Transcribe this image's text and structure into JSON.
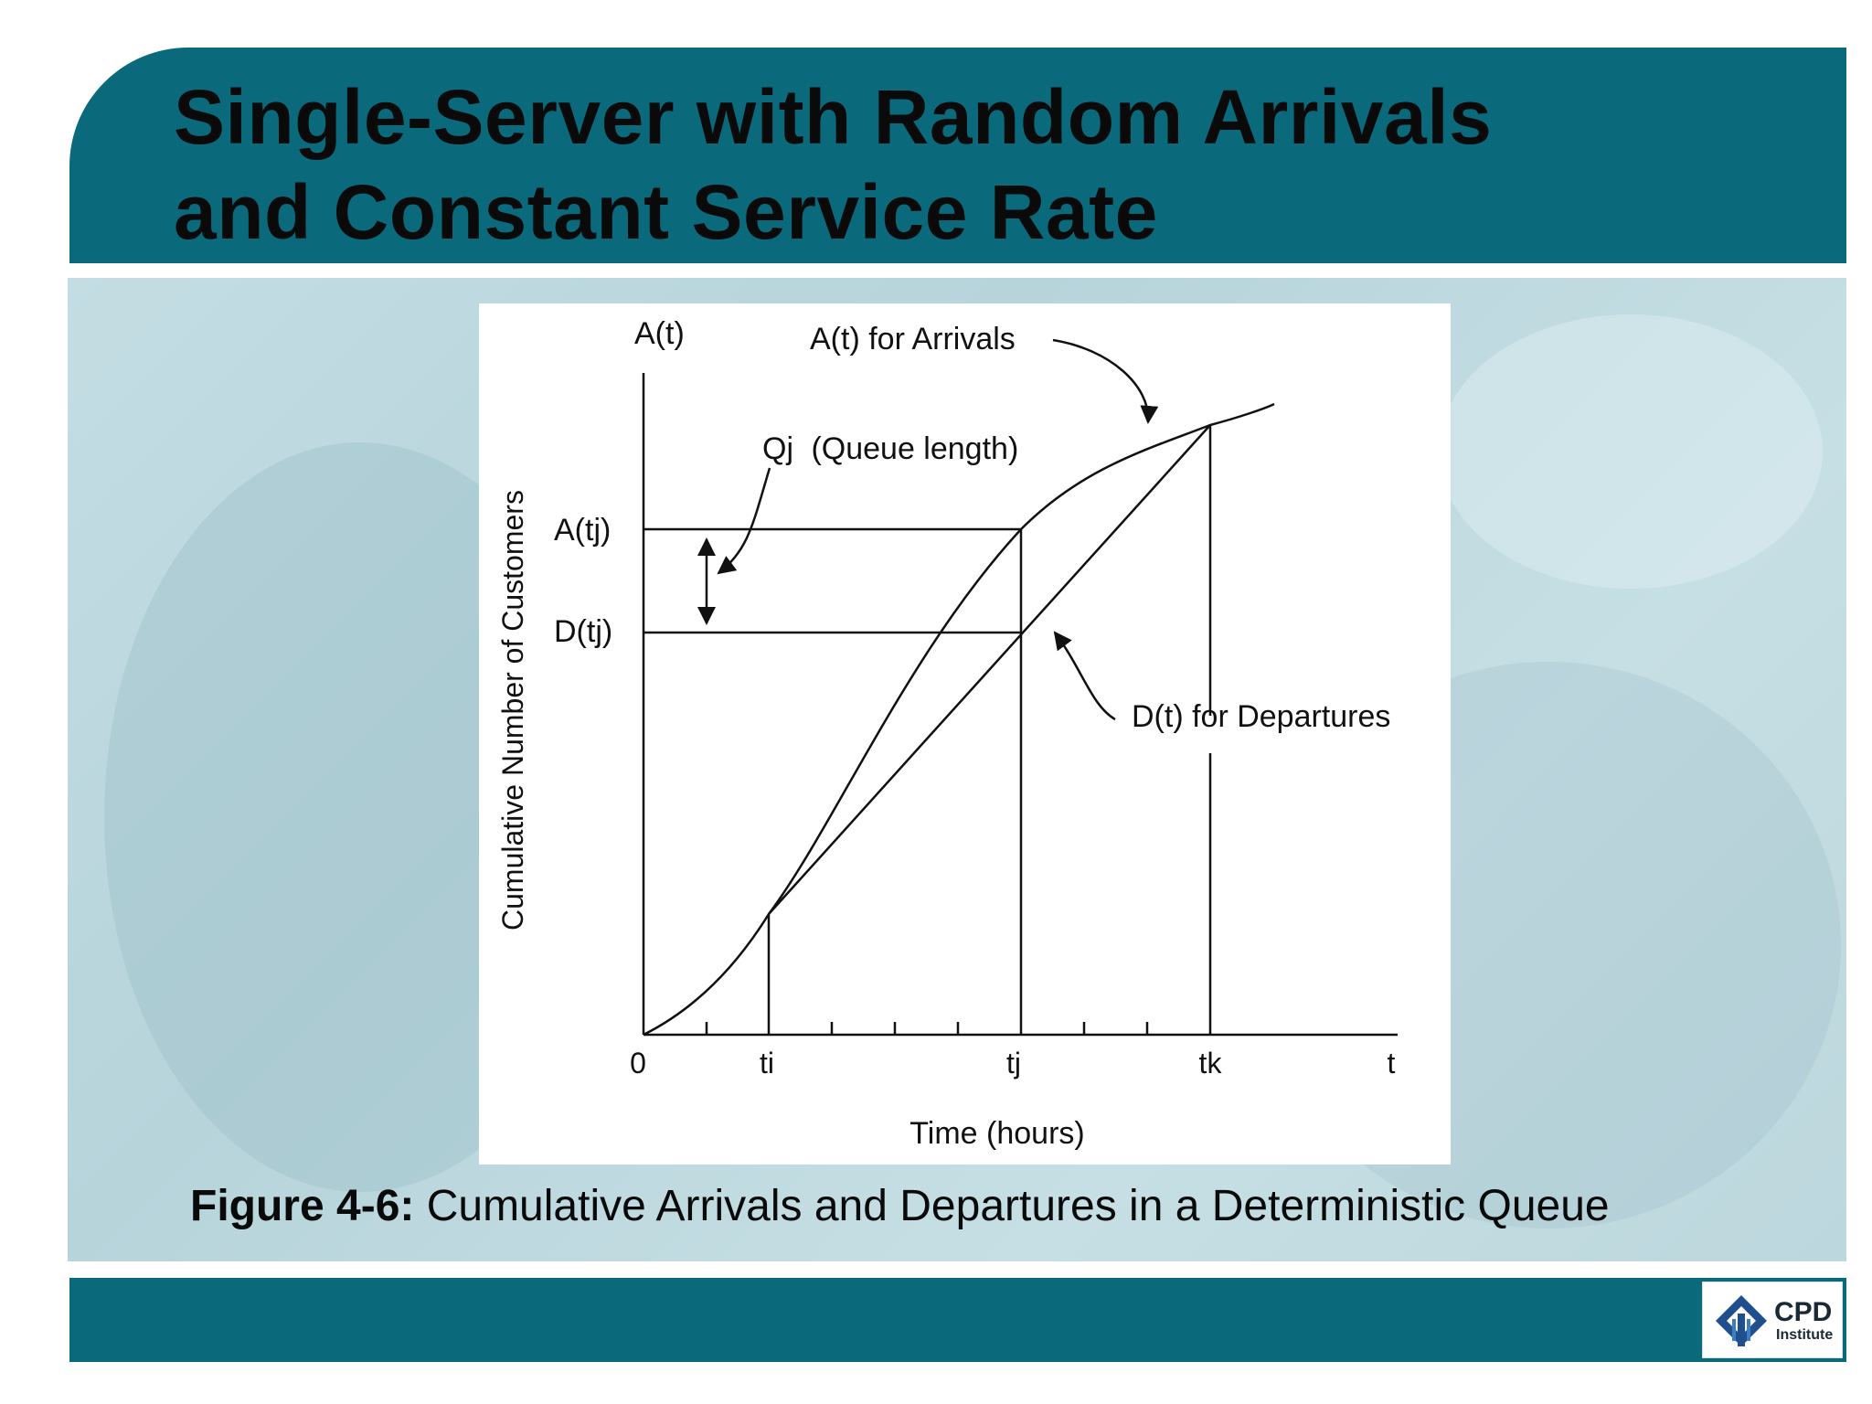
{
  "title": {
    "line1": "Single-Server with Random Arrivals",
    "line2": "and Constant Service Rate"
  },
  "diagram": {
    "y_axis_top_label": "A(t)",
    "y_axis_title": "Cumulative Number of Customers",
    "x_axis_title": "Time (hours)",
    "tick_labels": {
      "origin": "0",
      "ti": "ti",
      "tj": "tj",
      "tk": "tk",
      "t": "t"
    },
    "level_labels": {
      "a_tj": "A(tj)",
      "d_tj": "D(tj)"
    },
    "annotations": {
      "arrivals": "A(t) for Arrivals",
      "departures": "D(t) for Departures",
      "queue_symbol": "Qj",
      "queue_text": "(Queue length)"
    }
  },
  "caption": {
    "bold": "Figure 4-6:",
    "text": " Cumulative Arrivals and Departures in a Deterministic Queue"
  },
  "logo": {
    "name": "CPD",
    "sub": "Institute"
  },
  "colors": {
    "band": "#0a6a7c",
    "panel": "#c3dde3"
  }
}
